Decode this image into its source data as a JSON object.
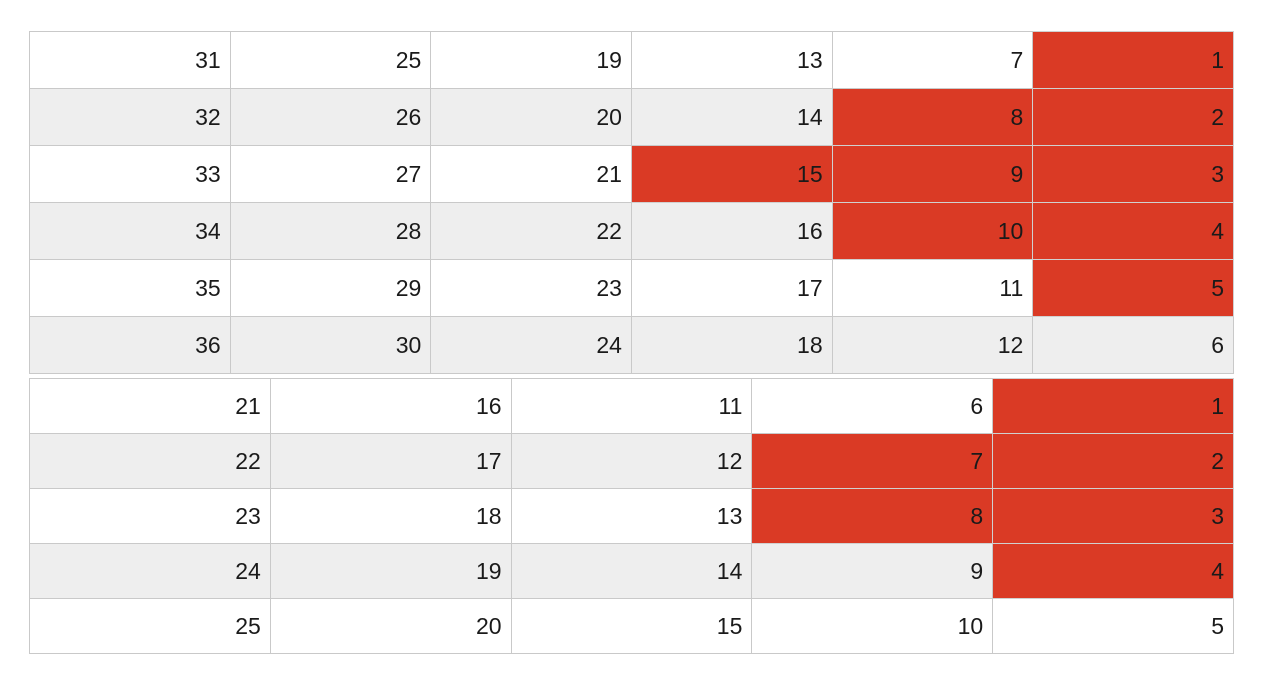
{
  "colors": {
    "highlight": "#da3a25",
    "row_alt": "#eeeeee",
    "row_base": "#ffffff",
    "border": "#c9c9c9"
  },
  "grids": [
    {
      "rows": [
        [
          "31",
          "25",
          "19",
          "13",
          "7",
          "1"
        ],
        [
          "32",
          "26",
          "20",
          "14",
          "8",
          "2"
        ],
        [
          "33",
          "27",
          "21",
          "15",
          "9",
          "3"
        ],
        [
          "34",
          "28",
          "22",
          "16",
          "10",
          "4"
        ],
        [
          "35",
          "29",
          "23",
          "17",
          "11",
          "5"
        ],
        [
          "36",
          "30",
          "24",
          "18",
          "12",
          "6"
        ]
      ],
      "highlighted": [
        [
          0,
          5
        ],
        [
          1,
          4
        ],
        [
          1,
          5
        ],
        [
          2,
          3
        ],
        [
          2,
          4
        ],
        [
          2,
          5
        ],
        [
          3,
          4
        ],
        [
          3,
          5
        ],
        [
          4,
          5
        ]
      ]
    },
    {
      "rows": [
        [
          "21",
          "16",
          "11",
          "6",
          "1"
        ],
        [
          "22",
          "17",
          "12",
          "7",
          "2"
        ],
        [
          "23",
          "18",
          "13",
          "8",
          "3"
        ],
        [
          "24",
          "19",
          "14",
          "9",
          "4"
        ],
        [
          "25",
          "20",
          "15",
          "10",
          "5"
        ]
      ],
      "highlighted": [
        [
          0,
          4
        ],
        [
          1,
          3
        ],
        [
          1,
          4
        ],
        [
          2,
          3
        ],
        [
          2,
          4
        ],
        [
          3,
          4
        ]
      ]
    }
  ]
}
